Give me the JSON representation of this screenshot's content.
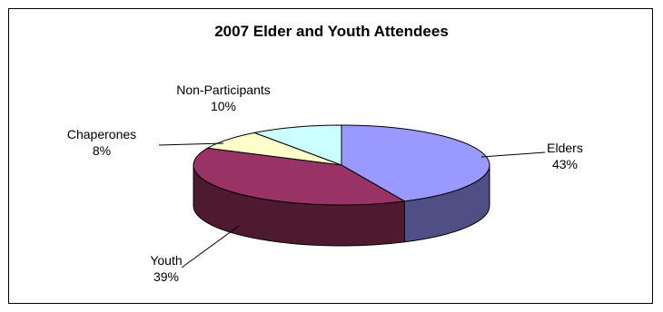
{
  "chart_data": {
    "type": "pie",
    "title": "2007 Elder and Youth Attendees",
    "style": "3d-exploded-none",
    "slices": [
      {
        "name": "Elders",
        "value": 43,
        "label_pct": "43%",
        "color_top": "#9999ff",
        "color_side": "#4f4f86"
      },
      {
        "name": "Youth",
        "value": 39,
        "label_pct": "39%",
        "color_top": "#993366",
        "color_side": "#4d1a30"
      },
      {
        "name": "Chaperones",
        "value": 8,
        "label_pct": "8%",
        "color_top": "#ffffcc",
        "color_side": "#8a8a6a"
      },
      {
        "name": "Non-Participants",
        "value": 10,
        "label_pct": "10%",
        "color_top": "#ccffff",
        "color_side": "#6a8a8a"
      }
    ]
  }
}
